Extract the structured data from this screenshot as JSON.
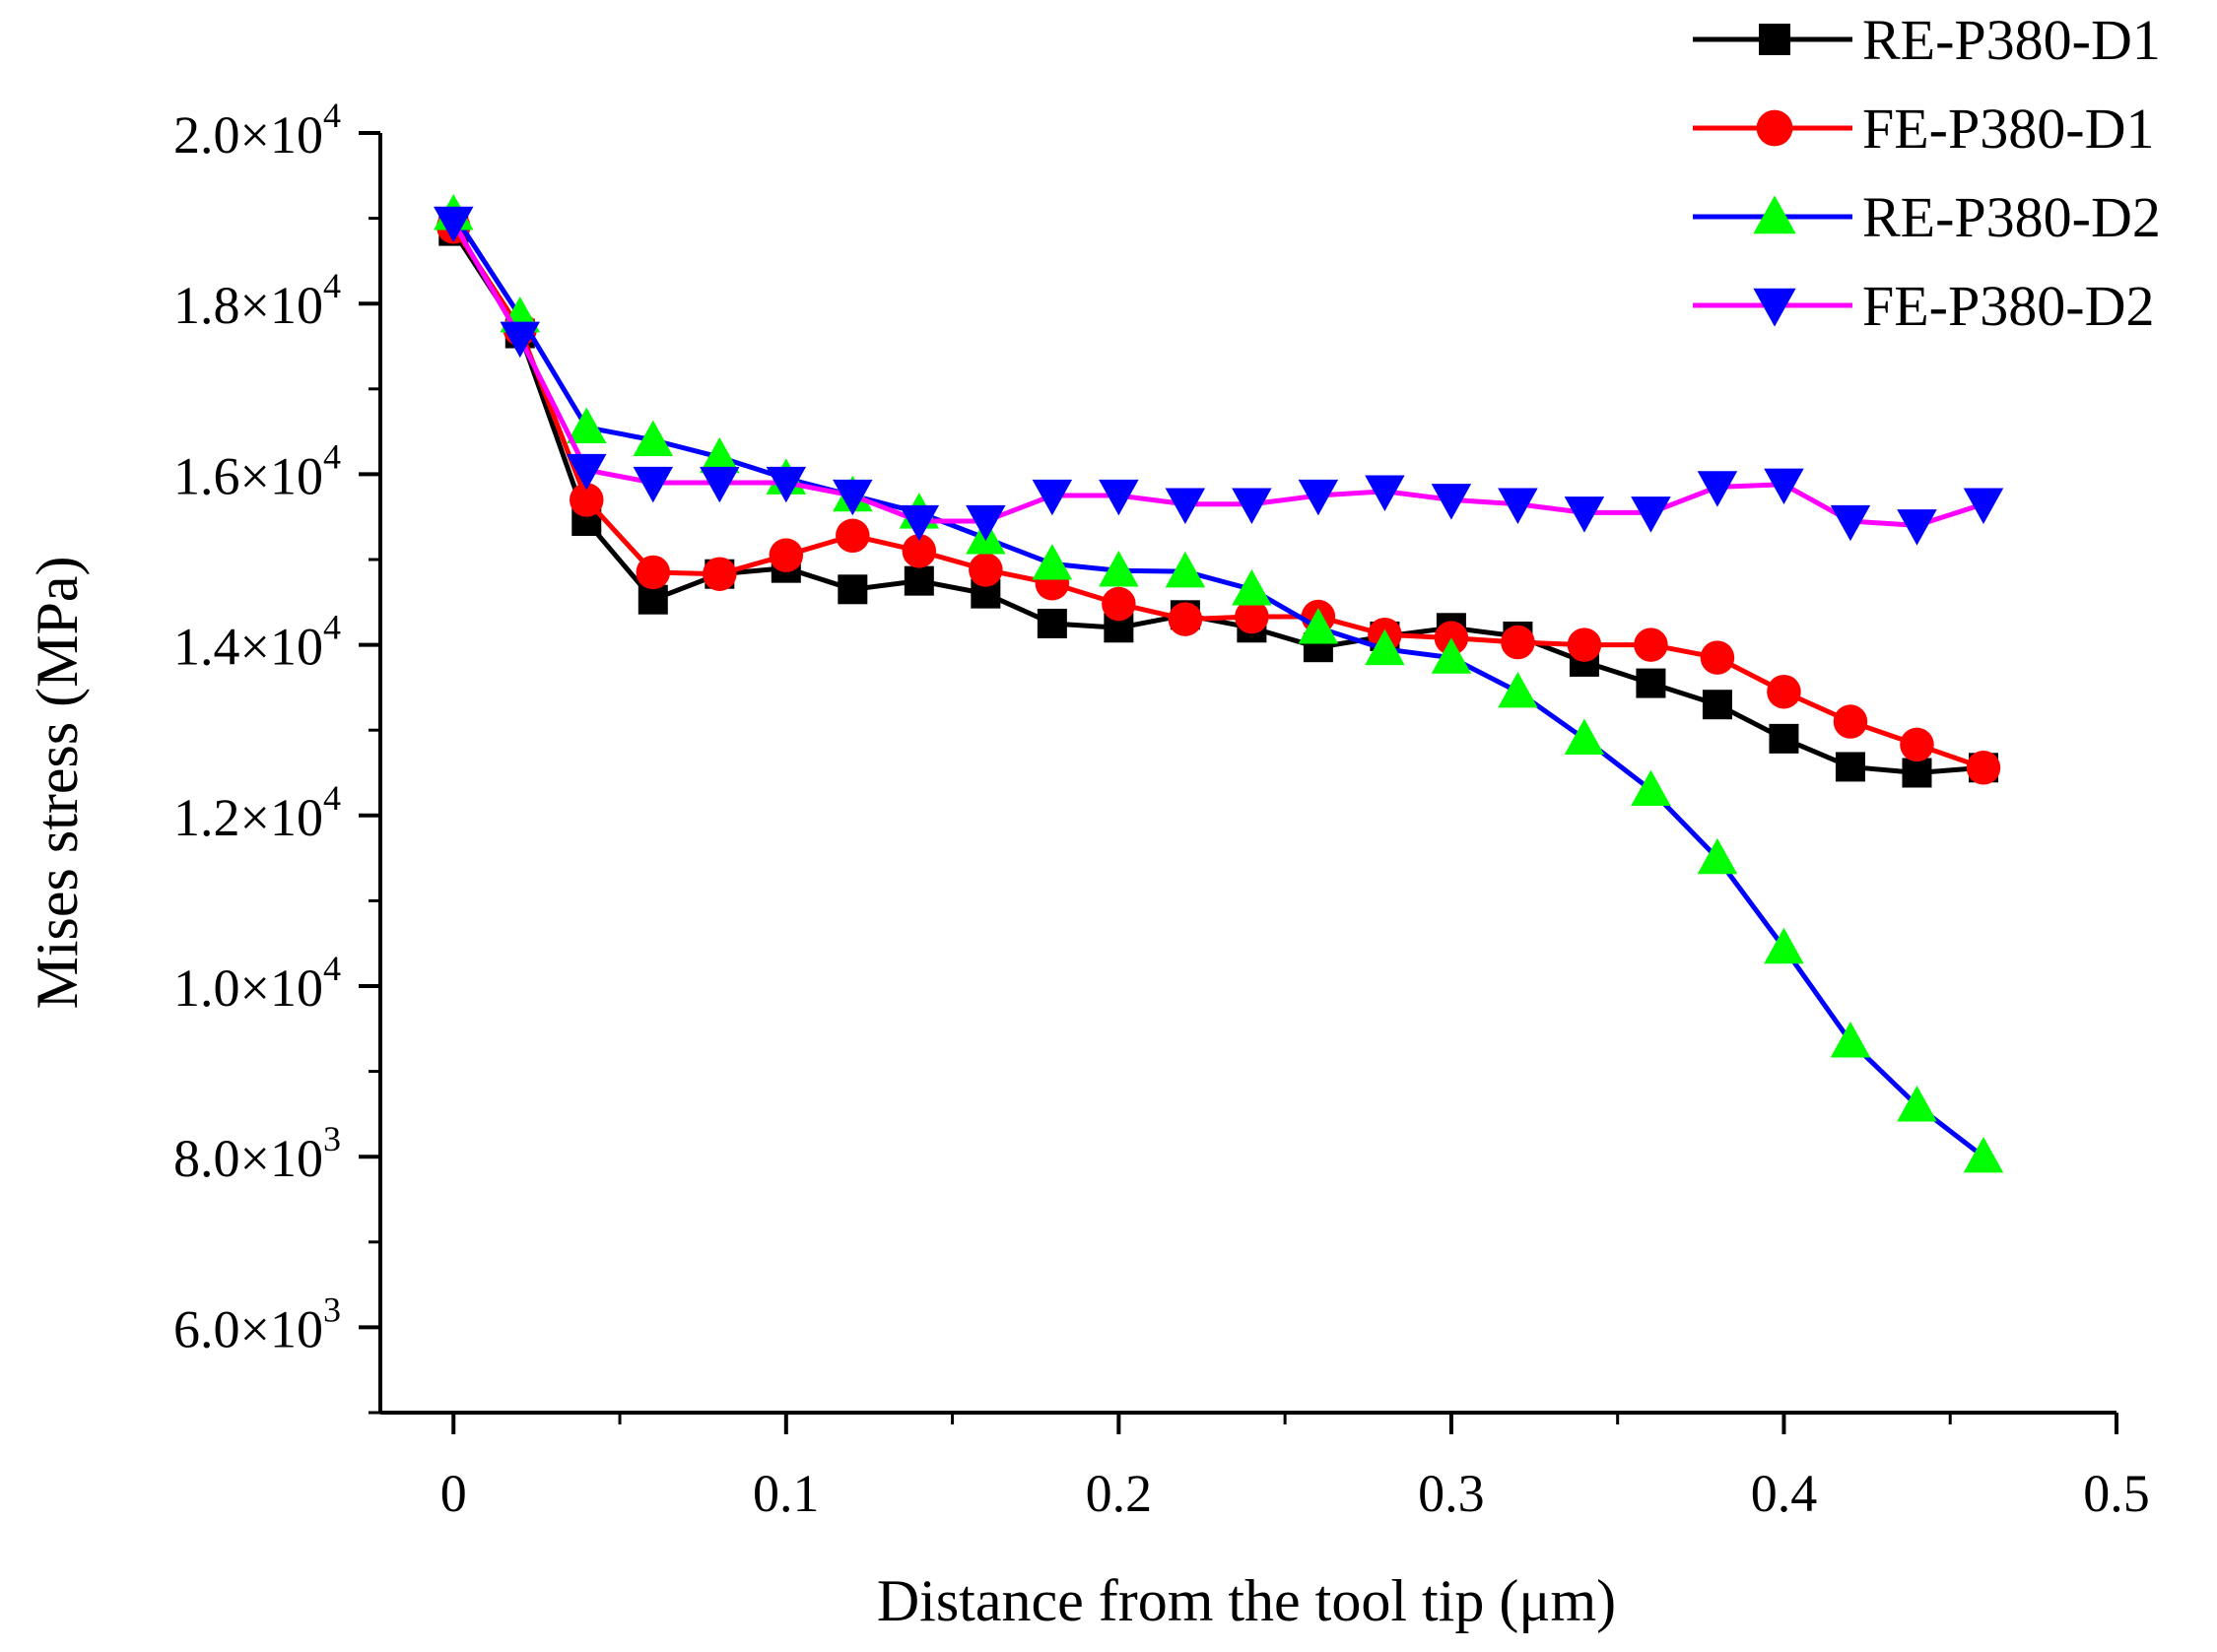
{
  "chart_data": {
    "type": "line",
    "xlabel": "Distance from the tool tip (μm)",
    "ylabel": "Mises stress (MPa)",
    "xlim": [
      -0.022,
      0.5
    ],
    "ylim": [
      5000,
      20000
    ],
    "x_ticks": [
      {
        "value": 0,
        "label": "0"
      },
      {
        "value": 0.1,
        "label": "0.1"
      },
      {
        "value": 0.2,
        "label": "0.2"
      },
      {
        "value": 0.3,
        "label": "0.3"
      },
      {
        "value": 0.4,
        "label": "0.4"
      },
      {
        "value": 0.5,
        "label": "0.5"
      }
    ],
    "y_ticks": [
      {
        "value": 6000,
        "mantissa": "6.0",
        "exp": "3"
      },
      {
        "value": 8000,
        "mantissa": "8.0",
        "exp": "3"
      },
      {
        "value": 10000,
        "mantissa": "1.0",
        "exp": "4"
      },
      {
        "value": 12000,
        "mantissa": "1.2",
        "exp": "4"
      },
      {
        "value": 14000,
        "mantissa": "1.4",
        "exp": "4"
      },
      {
        "value": 16000,
        "mantissa": "1.6",
        "exp": "4"
      },
      {
        "value": 18000,
        "mantissa": "1.8",
        "exp": "4"
      },
      {
        "value": 20000,
        "mantissa": "2.0",
        "exp": "4"
      }
    ],
    "grid": false,
    "legend_position": "top-right",
    "x": [
      0,
      0.02,
      0.04,
      0.06,
      0.08,
      0.1,
      0.12,
      0.14,
      0.16,
      0.18,
      0.2,
      0.22,
      0.24,
      0.26,
      0.28,
      0.3,
      0.32,
      0.34,
      0.36,
      0.38,
      0.4,
      0.42,
      0.44,
      0.46
    ],
    "series": [
      {
        "name": "RE-P380-D1",
        "line_color": "#000000",
        "marker_color": "#000000",
        "marker": "square",
        "values": [
          18850,
          17650,
          15450,
          14530,
          14830,
          14900,
          14650,
          14750,
          14600,
          14250,
          14200,
          14350,
          14200,
          13970,
          14100,
          14200,
          14100,
          13800,
          13550,
          13300,
          12900,
          12570,
          12500,
          12560
        ]
      },
      {
        "name": "FE-P380-D1",
        "line_color": "#ff0000",
        "marker_color": "#ff0000",
        "marker": "circle",
        "values": [
          18900,
          17700,
          15700,
          14850,
          14830,
          15050,
          15280,
          15100,
          14880,
          14720,
          14480,
          14300,
          14330,
          14330,
          14120,
          14080,
          14030,
          14000,
          14000,
          13850,
          13450,
          13100,
          12830,
          12560
        ]
      },
      {
        "name": "RE-P380-D2",
        "line_color": "#0000ff",
        "marker_color": "#00ff00",
        "marker": "triangle-up",
        "values": [
          19050,
          17850,
          16550,
          16400,
          16200,
          15950,
          15750,
          15550,
          15250,
          14950,
          14870,
          14860,
          14650,
          14200,
          13950,
          13850,
          13450,
          12900,
          12300,
          11500,
          10450,
          9350,
          8600,
          8000
        ]
      },
      {
        "name": "FE-P380-D2",
        "line_color": "#ff00ff",
        "marker_color": "#0000ff",
        "marker": "triangle-down",
        "values": [
          18950,
          17600,
          16050,
          15900,
          15900,
          15900,
          15750,
          15450,
          15450,
          15750,
          15750,
          15650,
          15650,
          15750,
          15800,
          15700,
          15650,
          15550,
          15550,
          15850,
          15880,
          15450,
          15400,
          15650
        ]
      }
    ]
  }
}
